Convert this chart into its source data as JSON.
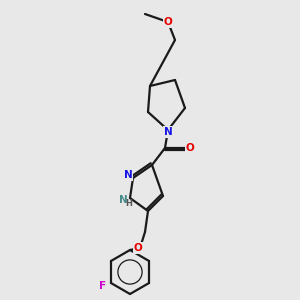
{
  "background_color": "#e8e8e8",
  "bond_color": "#1a1a1a",
  "atom_colors": {
    "N": "#1414e6",
    "O": "#e60000",
    "F": "#cc00cc",
    "NH": "#4a8a8a",
    "C": "#1a1a1a"
  },
  "lw": 1.6,
  "fontsize": 7.5
}
